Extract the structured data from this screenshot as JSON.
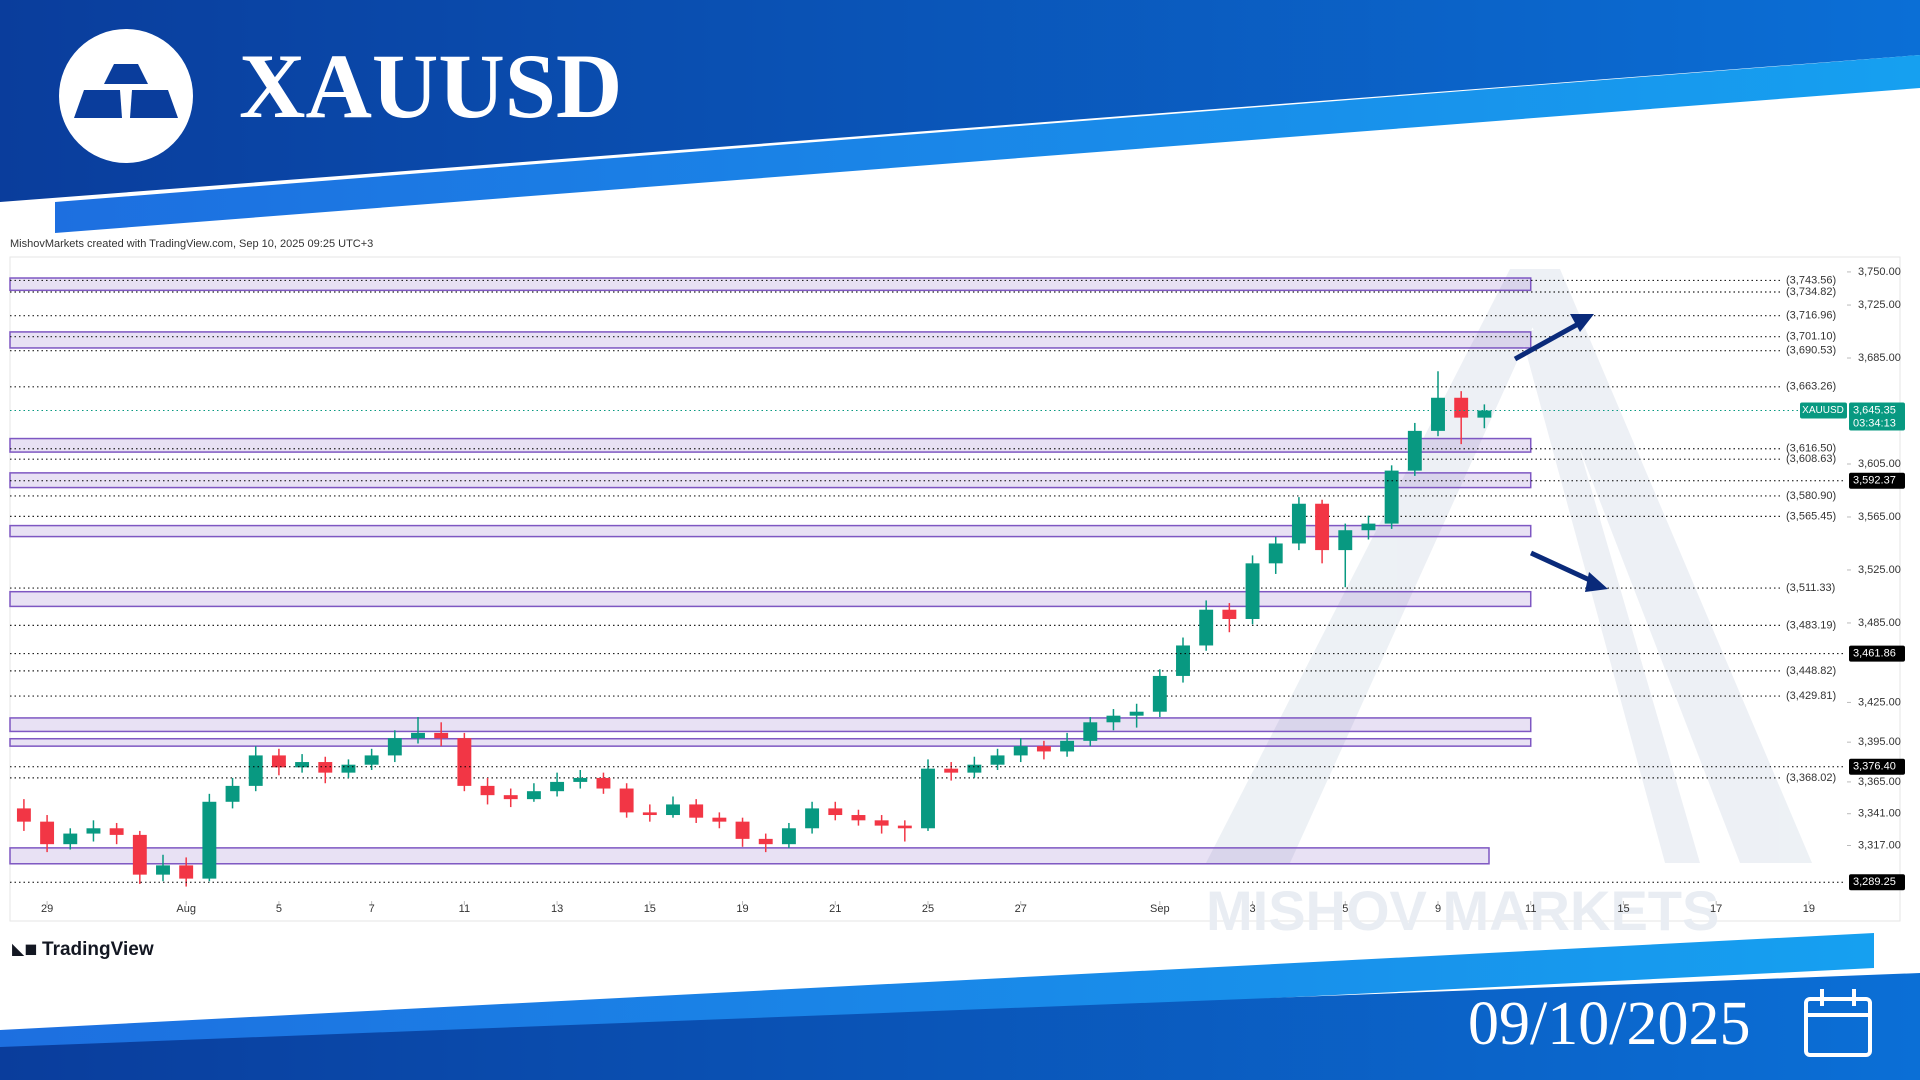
{
  "header": {
    "title": "XAUUSD",
    "date": "09/10/2025"
  },
  "chart_data": {
    "type": "candlestick",
    "attribution": "MishovMarkets created with TradingView.com, Sep 10, 2025 09:25 UTC+3",
    "brand": "TradingView",
    "watermark": "MISHOV   MARKETS",
    "up_color": "#089981",
    "down_color": "#f23645",
    "zone_color": "#7e57c2",
    "x": [
      -0.5,
      0,
      0.5,
      1,
      1.5,
      2,
      2.5,
      3,
      3.5,
      4,
      4.5,
      5,
      5.5,
      6,
      6.5,
      7,
      7.5,
      8,
      8.5,
      9,
      9.5,
      10,
      10.5,
      11,
      11.5,
      12,
      12.5,
      13,
      13.5,
      14,
      14.5,
      15,
      15.5,
      16,
      16.5,
      17,
      17.5,
      18,
      18.5,
      19,
      19.5,
      20,
      20.5,
      21,
      21.5,
      22,
      22.5,
      23,
      23.5,
      24,
      24.5,
      25,
      25.5,
      26,
      26.5,
      27,
      27.5,
      28,
      28.5,
      29,
      29.5,
      30,
      30.5,
      31
    ],
    "open": [
      3345,
      3335,
      3318,
      3326,
      3330,
      3325,
      3295,
      3302,
      3292,
      3350,
      3362,
      3385,
      3376,
      3380,
      3372,
      3378,
      3385,
      3398,
      3402,
      3398,
      3362,
      3355,
      3352,
      3358,
      3365,
      3368,
      3360,
      3342,
      3340,
      3348,
      3338,
      3335,
      3322,
      3318,
      3330,
      3345,
      3340,
      3336,
      3332,
      3330,
      3375,
      3372,
      3378,
      3385,
      3392,
      3388,
      3396,
      3410,
      3415,
      3418,
      3445,
      3468,
      3495,
      3488,
      3530,
      3545,
      3575,
      3540,
      3555,
      3560,
      3600,
      3630,
      3655,
      3640
    ],
    "high": [
      3352,
      3340,
      3330,
      3336,
      3334,
      3328,
      3310,
      3308,
      3356,
      3368,
      3392,
      3390,
      3386,
      3384,
      3382,
      3390,
      3404,
      3414,
      3410,
      3402,
      3368,
      3360,
      3364,
      3372,
      3374,
      3372,
      3364,
      3348,
      3354,
      3352,
      3342,
      3338,
      3326,
      3334,
      3350,
      3350,
      3344,
      3340,
      3336,
      3382,
      3380,
      3384,
      3390,
      3398,
      3396,
      3402,
      3414,
      3420,
      3424,
      3450,
      3474,
      3502,
      3500,
      3536,
      3550,
      3580,
      3578,
      3560,
      3566,
      3604,
      3636,
      3675,
      3660,
      3650
    ],
    "low": [
      3328,
      3312,
      3314,
      3320,
      3318,
      3288,
      3290,
      3286,
      3290,
      3345,
      3358,
      3370,
      3372,
      3364,
      3368,
      3374,
      3380,
      3394,
      3392,
      3358,
      3348,
      3346,
      3350,
      3354,
      3360,
      3356,
      3338,
      3335,
      3338,
      3334,
      3330,
      3316,
      3312,
      3315,
      3326,
      3336,
      3332,
      3326,
      3320,
      3328,
      3366,
      3368,
      3374,
      3380,
      3382,
      3384,
      3392,
      3404,
      3406,
      3414,
      3440,
      3464,
      3478,
      3484,
      3522,
      3540,
      3530,
      3512,
      3548,
      3556,
      3596,
      3626,
      3620,
      3632
    ],
    "close": [
      3335,
      3318,
      3326,
      3330,
      3325,
      3295,
      3302,
      3292,
      3350,
      3362,
      3385,
      3376,
      3380,
      3372,
      3378,
      3385,
      3398,
      3402,
      3398,
      3362,
      3355,
      3352,
      3358,
      3365,
      3368,
      3360,
      3342,
      3340,
      3348,
      3338,
      3335,
      3322,
      3318,
      3330,
      3345,
      3340,
      3336,
      3332,
      3330,
      3375,
      3372,
      3378,
      3385,
      3392,
      3388,
      3396,
      3410,
      3415,
      3418,
      3445,
      3468,
      3495,
      3488,
      3530,
      3545,
      3575,
      3540,
      3555,
      3560,
      3600,
      3630,
      3655,
      3640,
      3645.35
    ],
    "xlim": [
      -0.8,
      38.8
    ],
    "xticks": [
      {
        "value": 0,
        "label": "29"
      },
      {
        "value": 3,
        "label": "Aug"
      },
      5,
      7,
      {
        "value": 9,
        "label": "11"
      },
      {
        "value": 11,
        "label": "13"
      },
      {
        "value": 13,
        "label": "15"
      },
      {
        "value": 15,
        "label": "19"
      },
      {
        "value": 17,
        "label": "21"
      },
      {
        "value": 19,
        "label": "25"
      },
      {
        "value": 21,
        "label": "27"
      },
      {
        "value": 24,
        "label": "Sep"
      },
      {
        "value": 26,
        "label": "3"
      },
      {
        "value": 28,
        "label": "5"
      },
      {
        "value": 30,
        "label": "9"
      },
      {
        "value": 32,
        "label": "11"
      },
      {
        "value": 34,
        "label": "15"
      },
      {
        "value": 36,
        "label": "17"
      },
      {
        "value": 38,
        "label": "19"
      }
    ],
    "ylim": [
      3260,
      3759
    ],
    "yticks": [
      {
        "value": 3750,
        "label": "3,750.00"
      },
      {
        "value": 3725,
        "label": "3,725.00"
      },
      {
        "value": 3685,
        "label": "3,685.00"
      },
      {
        "value": 3605,
        "label": "3,605.00"
      },
      {
        "value": 3565,
        "label": "3,565.00"
      },
      {
        "value": 3525,
        "label": "3,525.00"
      },
      {
        "value": 3485,
        "label": "3,485.00"
      },
      {
        "value": 3425,
        "label": "3,425.00"
      },
      {
        "value": 3395,
        "label": "3,395.00"
      },
      {
        "value": 3365,
        "label": "3,365.00"
      },
      {
        "value": 3341,
        "label": "3,341.00"
      },
      {
        "value": 3317,
        "label": "3,317.00"
      }
    ],
    "grid": false,
    "levels": [
      {
        "value": 3743.56,
        "label": "(3,743.56)"
      },
      {
        "value": 3734.82,
        "label": "(3,734.82)"
      },
      {
        "value": 3716.96,
        "label": "(3,716.96)"
      },
      {
        "value": 3701.1,
        "label": "(3,701.10)"
      },
      {
        "value": 3690.53,
        "label": "(3,690.53)"
      },
      {
        "value": 3663.26,
        "label": "(3,663.26)"
      },
      {
        "value": 3616.5,
        "label": "(3,616.50)"
      },
      {
        "value": 3608.63,
        "label": "(3,608.63)"
      },
      {
        "value": 3580.9,
        "label": "(3,580.90)"
      },
      {
        "value": 3565.45,
        "label": "(3,565.45)"
      },
      {
        "value": 3511.33,
        "label": "(3,511.33)"
      },
      {
        "value": 3483.19,
        "label": "(3,483.19)"
      },
      {
        "value": 3448.82,
        "label": "(3,448.82)"
      },
      {
        "value": 3429.81,
        "label": "(3,429.81)"
      },
      {
        "value": 3368.02,
        "label": "(3,368.02)"
      }
    ],
    "zones": [
      {
        "low": 3736.1,
        "high": 3745.4,
        "end": 32
      },
      {
        "low": 3692.6,
        "high": 3704.7,
        "end": 32
      },
      {
        "low": 3614,
        "high": 3624.2,
        "end": 32
      },
      {
        "low": 3587.2,
        "high": 3598.3,
        "end": 32
      },
      {
        "low": 3550.2,
        "high": 3558.5,
        "end": 32
      },
      {
        "low": 3497.5,
        "high": 3508.6,
        "end": 32
      },
      {
        "low": 3403.1,
        "high": 3413.3,
        "end": 32
      },
      {
        "low": 3392,
        "high": 3397.6,
        "end": 32
      },
      {
        "low": 3303.2,
        "high": 3315.2,
        "end": 31.1
      }
    ],
    "price_tags": [
      {
        "value": 3645.35,
        "label": "3,645.35",
        "symbol": "XAUUSD",
        "countdown": "03:34:13",
        "color": "#089981"
      },
      {
        "value": 3592.37,
        "label": "3,592.37",
        "color": "#000000"
      },
      {
        "value": 3461.86,
        "label": "3,461.86",
        "color": "#000000"
      },
      {
        "value": 3376.4,
        "label": "3,376.40",
        "color": "#000000"
      },
      {
        "value": 3289.25,
        "label": "3,289.25",
        "color": "#000000"
      }
    ]
  }
}
